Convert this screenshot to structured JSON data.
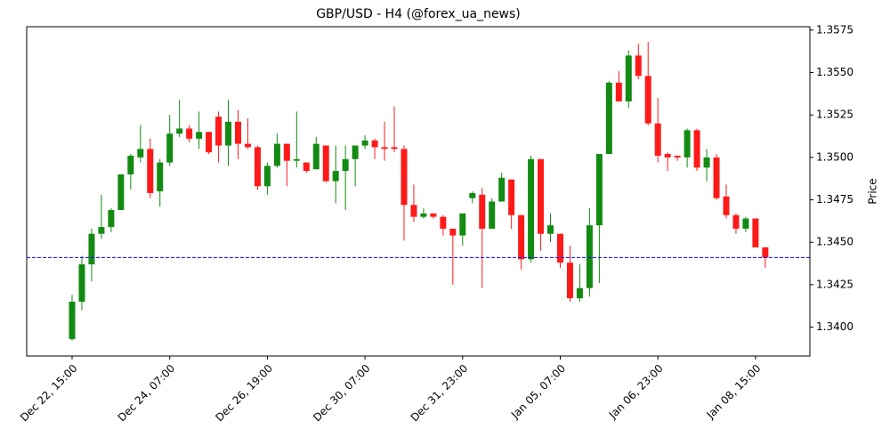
{
  "chart_data": {
    "type": "candlestick",
    "title": "GBP/USD - H4 (@forex_ua_news)",
    "y_label": "Price",
    "categories": [
      "Dec 22, 15:00",
      null,
      null,
      null,
      null,
      null,
      null,
      null,
      null,
      null,
      "Dec 24, 07:00",
      null,
      null,
      null,
      null,
      null,
      null,
      null,
      null,
      null,
      "Dec 26, 19:00",
      null,
      null,
      null,
      null,
      null,
      null,
      null,
      null,
      null,
      "Dec 30, 07:00",
      null,
      null,
      null,
      null,
      null,
      null,
      null,
      null,
      null,
      "Dec 31, 23:00",
      null,
      null,
      null,
      null,
      null,
      null,
      null,
      null,
      null,
      "Jan 05, 07:00",
      null,
      null,
      null,
      null,
      null,
      null,
      null,
      null,
      null,
      "Jan 06, 23:00",
      null,
      null,
      null,
      null,
      null,
      null,
      null,
      null,
      null,
      "Jan 08, 15:00",
      null
    ],
    "open": [
      1.3393,
      1.3415,
      1.3437,
      1.3455,
      1.3459,
      1.3469,
      1.349,
      1.35,
      1.3505,
      1.348,
      1.3497,
      1.3514,
      1.3517,
      1.3511,
      1.3515,
      1.3524,
      1.3507,
      1.3521,
      1.3508,
      1.3506,
      1.3483,
      1.3495,
      1.3508,
      1.3498,
      1.3497,
      1.3493,
      1.3507,
      1.3486,
      1.3492,
      1.3499,
      1.3507,
      1.351,
      1.3506,
      1.3506,
      1.3505,
      1.3472,
      1.3465,
      1.3467,
      1.3465,
      1.3458,
      1.3454,
      1.3476,
      1.3478,
      1.3458,
      1.3474,
      1.3487,
      1.3466,
      1.344,
      1.3499,
      1.3455,
      1.3455,
      1.3438,
      1.3417,
      1.3423,
      1.346,
      1.3502,
      1.3544,
      1.3533,
      1.356,
      1.3548,
      1.352,
      1.3502,
      1.3501,
      1.35,
      1.3516,
      1.3494,
      1.35,
      1.3477,
      1.3466,
      1.3458,
      1.3464,
      1.3447
    ],
    "high": [
      1.3419,
      1.3442,
      1.3458,
      1.3478,
      1.347,
      1.349,
      1.3502,
      1.3519,
      1.3511,
      1.3499,
      1.3525,
      1.3534,
      1.3519,
      1.3527,
      1.3515,
      1.3527,
      1.3534,
      1.3528,
      1.3523,
      1.3507,
      1.3497,
      1.3514,
      1.3508,
      1.3527,
      1.3497,
      1.3512,
      1.3507,
      1.3507,
      1.3507,
      1.3507,
      1.3513,
      1.3511,
      1.3521,
      1.353,
      1.3507,
      1.3484,
      1.347,
      1.3467,
      1.3466,
      1.3458,
      1.3467,
      1.348,
      1.3482,
      1.3476,
      1.3491,
      1.3487,
      1.3466,
      1.3501,
      1.3499,
      1.3467,
      1.3455,
      1.3448,
      1.3437,
      1.347,
      1.3502,
      1.3545,
      1.3551,
      1.3563,
      1.3567,
      1.3568,
      1.3535,
      1.3503,
      1.3501,
      1.3517,
      1.3517,
      1.3505,
      1.3502,
      1.3484,
      1.3467,
      1.3465,
      1.3464,
      1.3447
    ],
    "low": [
      1.3392,
      1.341,
      1.3427,
      1.3452,
      1.3456,
      1.3469,
      1.3481,
      1.3497,
      1.3476,
      1.3471,
      1.3495,
      1.3512,
      1.3509,
      1.3505,
      1.3502,
      1.3497,
      1.3495,
      1.3499,
      1.3505,
      1.3481,
      1.3478,
      1.3494,
      1.3483,
      1.3494,
      1.3491,
      1.3493,
      1.3485,
      1.3473,
      1.3469,
      1.3483,
      1.3505,
      1.3499,
      1.3498,
      1.3503,
      1.3451,
      1.3462,
      1.3464,
      1.3464,
      1.3454,
      1.3425,
      1.3448,
      1.3473,
      1.3423,
      1.3458,
      1.3474,
      1.3458,
      1.3434,
      1.3438,
      1.3445,
      1.345,
      1.3435,
      1.3415,
      1.3415,
      1.3418,
      1.3426,
      1.3502,
      1.3533,
      1.3529,
      1.3546,
      1.3519,
      1.3497,
      1.3492,
      1.3498,
      1.3494,
      1.3492,
      1.3486,
      1.3475,
      1.3464,
      1.3455,
      1.3456,
      1.3447,
      1.3435
    ],
    "close": [
      1.3415,
      1.3437,
      1.3455,
      1.3459,
      1.3469,
      1.349,
      1.3501,
      1.3505,
      1.3479,
      1.3497,
      1.3514,
      1.3517,
      1.3511,
      1.3515,
      1.3503,
      1.3507,
      1.3521,
      1.3508,
      1.3506,
      1.3483,
      1.3495,
      1.3508,
      1.3498,
      1.3499,
      1.3492,
      1.3508,
      1.3486,
      1.3492,
      1.3499,
      1.3507,
      1.351,
      1.3506,
      1.3505,
      1.3505,
      1.3472,
      1.3465,
      1.3467,
      1.3465,
      1.3458,
      1.3454,
      1.3467,
      1.3479,
      1.3458,
      1.3474,
      1.3488,
      1.3466,
      1.344,
      1.3499,
      1.3455,
      1.346,
      1.3438,
      1.3417,
      1.3423,
      1.346,
      1.3502,
      1.3544,
      1.3533,
      1.356,
      1.3548,
      1.352,
      1.3501,
      1.35,
      1.35,
      1.3516,
      1.3494,
      1.35,
      1.3476,
      1.3466,
      1.3458,
      1.3464,
      1.3447,
      1.3441
    ],
    "up_color": "#138b13",
    "down_color": "#ff1a1a",
    "hline": {
      "value": 1.3441,
      "color": "blue"
    },
    "ylim": [
      1.3383,
      1.3577
    ],
    "yticks": [
      {
        "value": 1.34,
        "label": "1.3400"
      },
      1.3425,
      {
        "value": 1.345,
        "label": "1.3450"
      },
      1.3475,
      {
        "value": 1.35,
        "label": "1.3500"
      },
      1.3525,
      {
        "value": 1.355,
        "label": "1.3550"
      },
      1.3575
    ]
  }
}
